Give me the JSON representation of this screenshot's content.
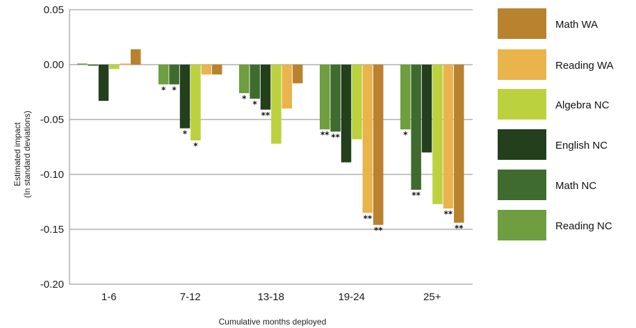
{
  "chart_data": {
    "type": "bar",
    "xlabel": "Cumulative months deployed",
    "ylabel_line1": "Estimated impact",
    "ylabel_line2": "(In standard deviations)",
    "ylim": [
      -0.2,
      0.05
    ],
    "yticks": [
      "0.05",
      "0.00",
      "-0.05",
      "-0.10",
      "-0.15",
      "-0.20"
    ],
    "ytick_values": [
      0.05,
      0.0,
      -0.05,
      -0.1,
      -0.15,
      -0.2
    ],
    "grid": true,
    "legend_position": "right",
    "categories": [
      "1-6",
      "7-12",
      "13-18",
      "19-24",
      "25+"
    ],
    "series": [
      {
        "name": "Reading NC",
        "color": "#6e9e3f",
        "values": [
          0.001,
          -0.018,
          -0.026,
          -0.059,
          -0.059
        ],
        "stars": [
          "",
          "*",
          "*",
          "**",
          "*"
        ]
      },
      {
        "name": "Math NC",
        "color": "#3f6b2f",
        "values": [
          -0.001,
          -0.018,
          -0.031,
          -0.061,
          -0.114
        ],
        "stars": [
          "",
          "*",
          "*",
          "**",
          "**"
        ]
      },
      {
        "name": "English NC",
        "color": "#233f1c",
        "values": [
          -0.033,
          -0.058,
          -0.041,
          -0.089,
          -0.08
        ],
        "stars": [
          "",
          "*",
          "**",
          "",
          ""
        ]
      },
      {
        "name": "Algebra NC",
        "color": "#bcd13e",
        "values": [
          -0.004,
          -0.069,
          -0.072,
          -0.068,
          -0.127
        ],
        "stars": [
          "",
          "*",
          "",
          "",
          ""
        ]
      },
      {
        "name": "Reading WA",
        "color": "#e9b44c",
        "values": [
          0.001,
          -0.009,
          -0.04,
          -0.135,
          -0.131
        ],
        "stars": [
          "",
          "",
          "",
          "**",
          "**"
        ]
      },
      {
        "name": "Math WA",
        "color": "#b9822f",
        "values": [
          0.014,
          -0.009,
          -0.017,
          -0.146,
          -0.144
        ],
        "stars": [
          "",
          "",
          "",
          "**",
          "**"
        ]
      }
    ],
    "legend_order": [
      "Math WA",
      "Reading WA",
      "Algebra NC",
      "English NC",
      "Math NC",
      "Reading NC"
    ]
  }
}
